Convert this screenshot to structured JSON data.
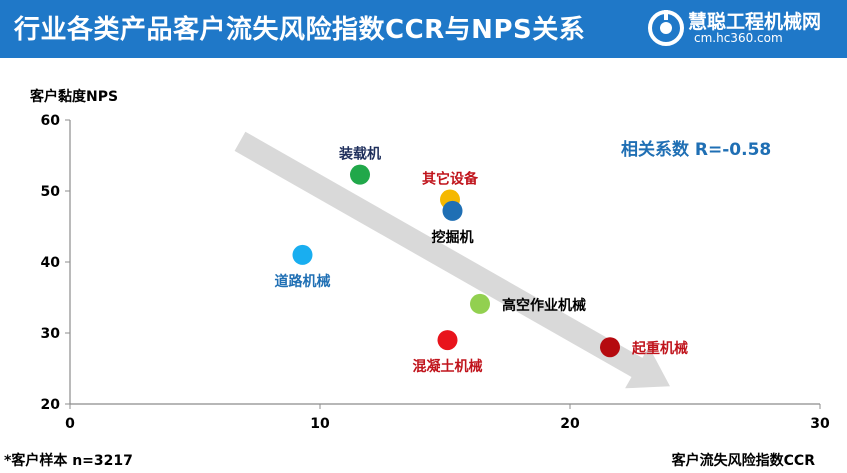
{
  "header": {
    "title": "行业各类产品客户流失风险指数CCR与NPS关系",
    "logo_main": "慧聪工程机械网",
    "logo_sub": "cm.hc360.com"
  },
  "note": "*客户样本 n=3217",
  "correlation_label": "相关系数 R=-0.58",
  "chart_data": {
    "type": "scatter",
    "title": "行业各类产品客户流失风险指数CCR与NPS关系",
    "xlabel": "客户流失风险指数CCR",
    "ylabel": "客户黏度NPS",
    "xlim": [
      0,
      30
    ],
    "ylim": [
      20,
      60
    ],
    "xticks": [
      0,
      10,
      20,
      30
    ],
    "yticks": [
      20,
      30,
      40,
      50,
      60
    ],
    "grid": false,
    "legend": "none",
    "trend_arrow": {
      "from": [
        6.8,
        57
      ],
      "to": [
        24,
        22.5
      ],
      "color": "#d9d9d9"
    },
    "points": [
      {
        "label": "装载机",
        "x": 11.6,
        "y": 52.3,
        "color": "#21a84a",
        "label_color": "#1f2f5c",
        "label_pos": "above"
      },
      {
        "label": "其它设备",
        "x": 15.2,
        "y": 48.8,
        "color": "#f5b800",
        "label_color": "#c0141c",
        "label_pos": "above"
      },
      {
        "label": "挖掘机",
        "x": 15.3,
        "y": 47.2,
        "color": "#1f6fb4",
        "label_color": "#000000",
        "label_pos": "below"
      },
      {
        "label": "道路机械",
        "x": 9.3,
        "y": 41.0,
        "color": "#19aef0",
        "label_color": "#1f6fb4",
        "label_pos": "below"
      },
      {
        "label": "高空作业机械",
        "x": 16.4,
        "y": 34.1,
        "color": "#92d050",
        "label_color": "#000000",
        "label_pos": "right"
      },
      {
        "label": "混凝土机械",
        "x": 15.1,
        "y": 29.0,
        "color": "#e8141c",
        "label_color": "#c0141c",
        "label_pos": "below"
      },
      {
        "label": "起重机械",
        "x": 21.6,
        "y": 28.0,
        "color": "#b50a0f",
        "label_color": "#c0141c",
        "label_pos": "right"
      }
    ]
  },
  "colors": {
    "header_bg": "#1f78c8",
    "axis": "#8c8c8c"
  },
  "icons": [
    "logo-icon"
  ]
}
